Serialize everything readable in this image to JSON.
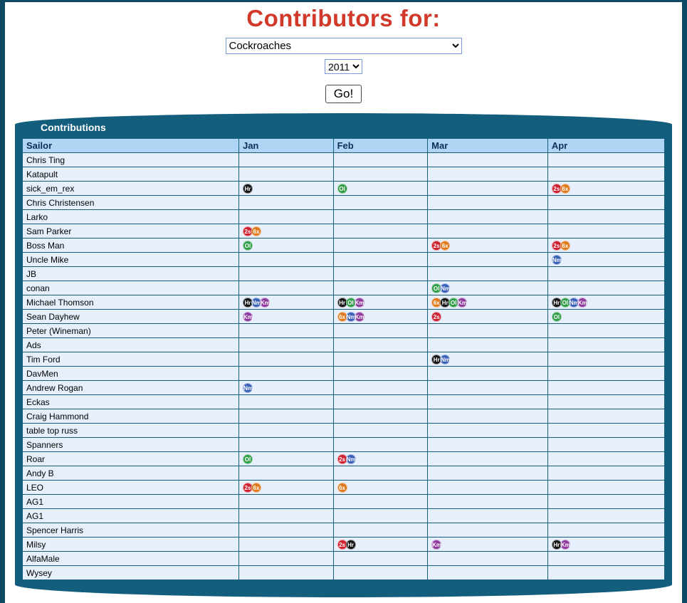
{
  "page": {
    "title": "Contributors for:",
    "group_select": {
      "value": "Cockroaches"
    },
    "year_select": {
      "value": "2011"
    },
    "go_button": "Go!"
  },
  "table": {
    "panel_title": "Contributions",
    "columns": [
      "Sailor",
      "Jan",
      "Feb",
      "Mar",
      "Apr"
    ],
    "badge_colors": {
      "Hr": "#141414",
      "Nm": "#3a62b8",
      "Km": "#8e3a9e",
      "2s": "#cf2030",
      "6x": "#e0791a",
      "Ol": "#2f9e47"
    },
    "rows": [
      {
        "sailor": "Chris Ting",
        "months": [
          [],
          [],
          [],
          []
        ]
      },
      {
        "sailor": "Katapult",
        "months": [
          [],
          [],
          [],
          []
        ]
      },
      {
        "sailor": "sick_em_rex",
        "months": [
          [
            "Hr"
          ],
          [
            "Ol"
          ],
          [],
          [
            "2s",
            "6x"
          ]
        ]
      },
      {
        "sailor": "Chris Christensen",
        "months": [
          [],
          [],
          [],
          []
        ]
      },
      {
        "sailor": "Larko",
        "months": [
          [],
          [],
          [],
          []
        ]
      },
      {
        "sailor": "Sam Parker",
        "months": [
          [
            "2s",
            "6x"
          ],
          [],
          [],
          []
        ]
      },
      {
        "sailor": "Boss Man",
        "months": [
          [
            "Ol"
          ],
          [],
          [
            "2s",
            "6x"
          ],
          [
            "2s",
            "6x"
          ]
        ]
      },
      {
        "sailor": "Uncle Mike",
        "months": [
          [],
          [],
          [],
          [
            "Nm"
          ]
        ]
      },
      {
        "sailor": "JB",
        "months": [
          [],
          [],
          [],
          []
        ]
      },
      {
        "sailor": "conan",
        "months": [
          [],
          [],
          [
            "Ol",
            "Nm"
          ],
          []
        ]
      },
      {
        "sailor": "Michael Thomson",
        "months": [
          [
            "Hr",
            "Nm",
            "Km"
          ],
          [
            "Hr",
            "Ol",
            "Km"
          ],
          [
            "6x",
            "Hr",
            "Ol",
            "Km"
          ],
          [
            "Hr",
            "Ol",
            "Nm",
            "Km"
          ]
        ]
      },
      {
        "sailor": "Sean Dayhew",
        "months": [
          [
            "Km"
          ],
          [
            "6x",
            "Nm",
            "Km"
          ],
          [
            "2s"
          ],
          [
            "Ol"
          ]
        ]
      },
      {
        "sailor": "Peter (Wineman)",
        "months": [
          [],
          [],
          [],
          []
        ]
      },
      {
        "sailor": "Ads",
        "months": [
          [],
          [],
          [],
          []
        ]
      },
      {
        "sailor": "Tim Ford",
        "months": [
          [],
          [],
          [
            "Hr",
            "Nm"
          ],
          []
        ]
      },
      {
        "sailor": "DavMen",
        "months": [
          [],
          [],
          [],
          []
        ]
      },
      {
        "sailor": "Andrew Rogan",
        "months": [
          [
            "Nm"
          ],
          [],
          [],
          []
        ]
      },
      {
        "sailor": "Eckas",
        "months": [
          [],
          [],
          [],
          []
        ]
      },
      {
        "sailor": "Craig Hammond",
        "months": [
          [],
          [],
          [],
          []
        ]
      },
      {
        "sailor": "table top russ",
        "months": [
          [],
          [],
          [],
          []
        ]
      },
      {
        "sailor": "Spanners",
        "months": [
          [],
          [],
          [],
          []
        ]
      },
      {
        "sailor": "Roar",
        "months": [
          [
            "Ol"
          ],
          [
            "2s",
            "Nm"
          ],
          [],
          []
        ]
      },
      {
        "sailor": "Andy B",
        "months": [
          [],
          [],
          [],
          []
        ]
      },
      {
        "sailor": "LEO",
        "months": [
          [
            "2s",
            "6x"
          ],
          [
            "6x"
          ],
          [],
          []
        ]
      },
      {
        "sailor": "AG1",
        "months": [
          [],
          [],
          [],
          []
        ]
      },
      {
        "sailor": "AG1",
        "months": [
          [],
          [],
          [],
          []
        ]
      },
      {
        "sailor": "Spencer Harris",
        "months": [
          [],
          [],
          [],
          []
        ]
      },
      {
        "sailor": "Milsy",
        "months": [
          [],
          [
            "2s",
            "Hr"
          ],
          [
            "Km"
          ],
          [
            "Hr",
            "Km"
          ]
        ]
      },
      {
        "sailor": "AlfaMale",
        "months": [
          [],
          [],
          [],
          []
        ]
      },
      {
        "sailor": "Wysey",
        "months": [
          [],
          [],
          [],
          []
        ]
      }
    ]
  }
}
